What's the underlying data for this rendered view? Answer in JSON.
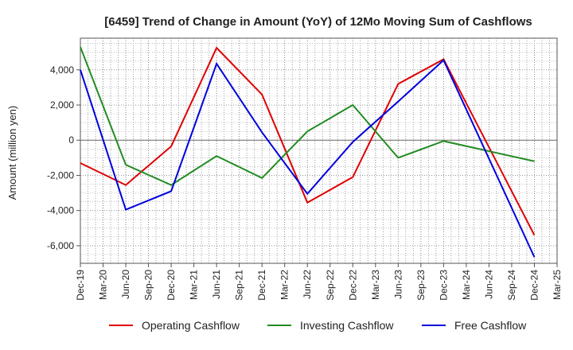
{
  "chart_data": {
    "type": "line",
    "title": "[6459]  Trend of Change in Amount (YoY) of 12Mo Moving Sum of Cashflows",
    "xlabel": "",
    "ylabel": "Amount (million yen)",
    "ylim": [
      -7000,
      5800
    ],
    "yticks": [
      -6000,
      -4000,
      -2000,
      0,
      2000,
      4000
    ],
    "ytick_labels": [
      "-6,000",
      "-4,000",
      "-2,000",
      "0",
      "2,000",
      "4,000"
    ],
    "categories": [
      "Dec-19",
      "Mar-20",
      "Jun-20",
      "Sep-20",
      "Dec-20",
      "Mar-21",
      "Jun-21",
      "Sep-21",
      "Dec-21",
      "Mar-22",
      "Jun-22",
      "Sep-22",
      "Dec-22",
      "Mar-23",
      "Jun-23",
      "Sep-23",
      "Dec-23",
      "Mar-24",
      "Jun-24",
      "Sep-24",
      "Dec-24",
      "Mar-25"
    ],
    "grid": true,
    "legend_position": "bottom",
    "series": [
      {
        "name": "Operating Cashflow",
        "color": "#e00000",
        "values": [
          -1300,
          null,
          -2550,
          null,
          -350,
          null,
          5250,
          null,
          2600,
          null,
          -3550,
          null,
          -2100,
          null,
          3200,
          null,
          4600,
          null,
          null,
          null,
          -5400,
          null
        ]
      },
      {
        "name": "Investing Cashflow",
        "color": "#228b22",
        "values": [
          5300,
          null,
          -1400,
          null,
          -2550,
          null,
          -900,
          null,
          -2150,
          null,
          500,
          null,
          2000,
          null,
          -1000,
          null,
          -50,
          null,
          null,
          null,
          -1200,
          null
        ]
      },
      {
        "name": "Free Cashflow",
        "color": "#0000dd",
        "values": [
          4000,
          null,
          -3950,
          null,
          -2900,
          null,
          4350,
          null,
          450,
          null,
          -3050,
          null,
          -100,
          null,
          2200,
          null,
          4550,
          null,
          null,
          null,
          -6650,
          null
        ]
      }
    ]
  }
}
